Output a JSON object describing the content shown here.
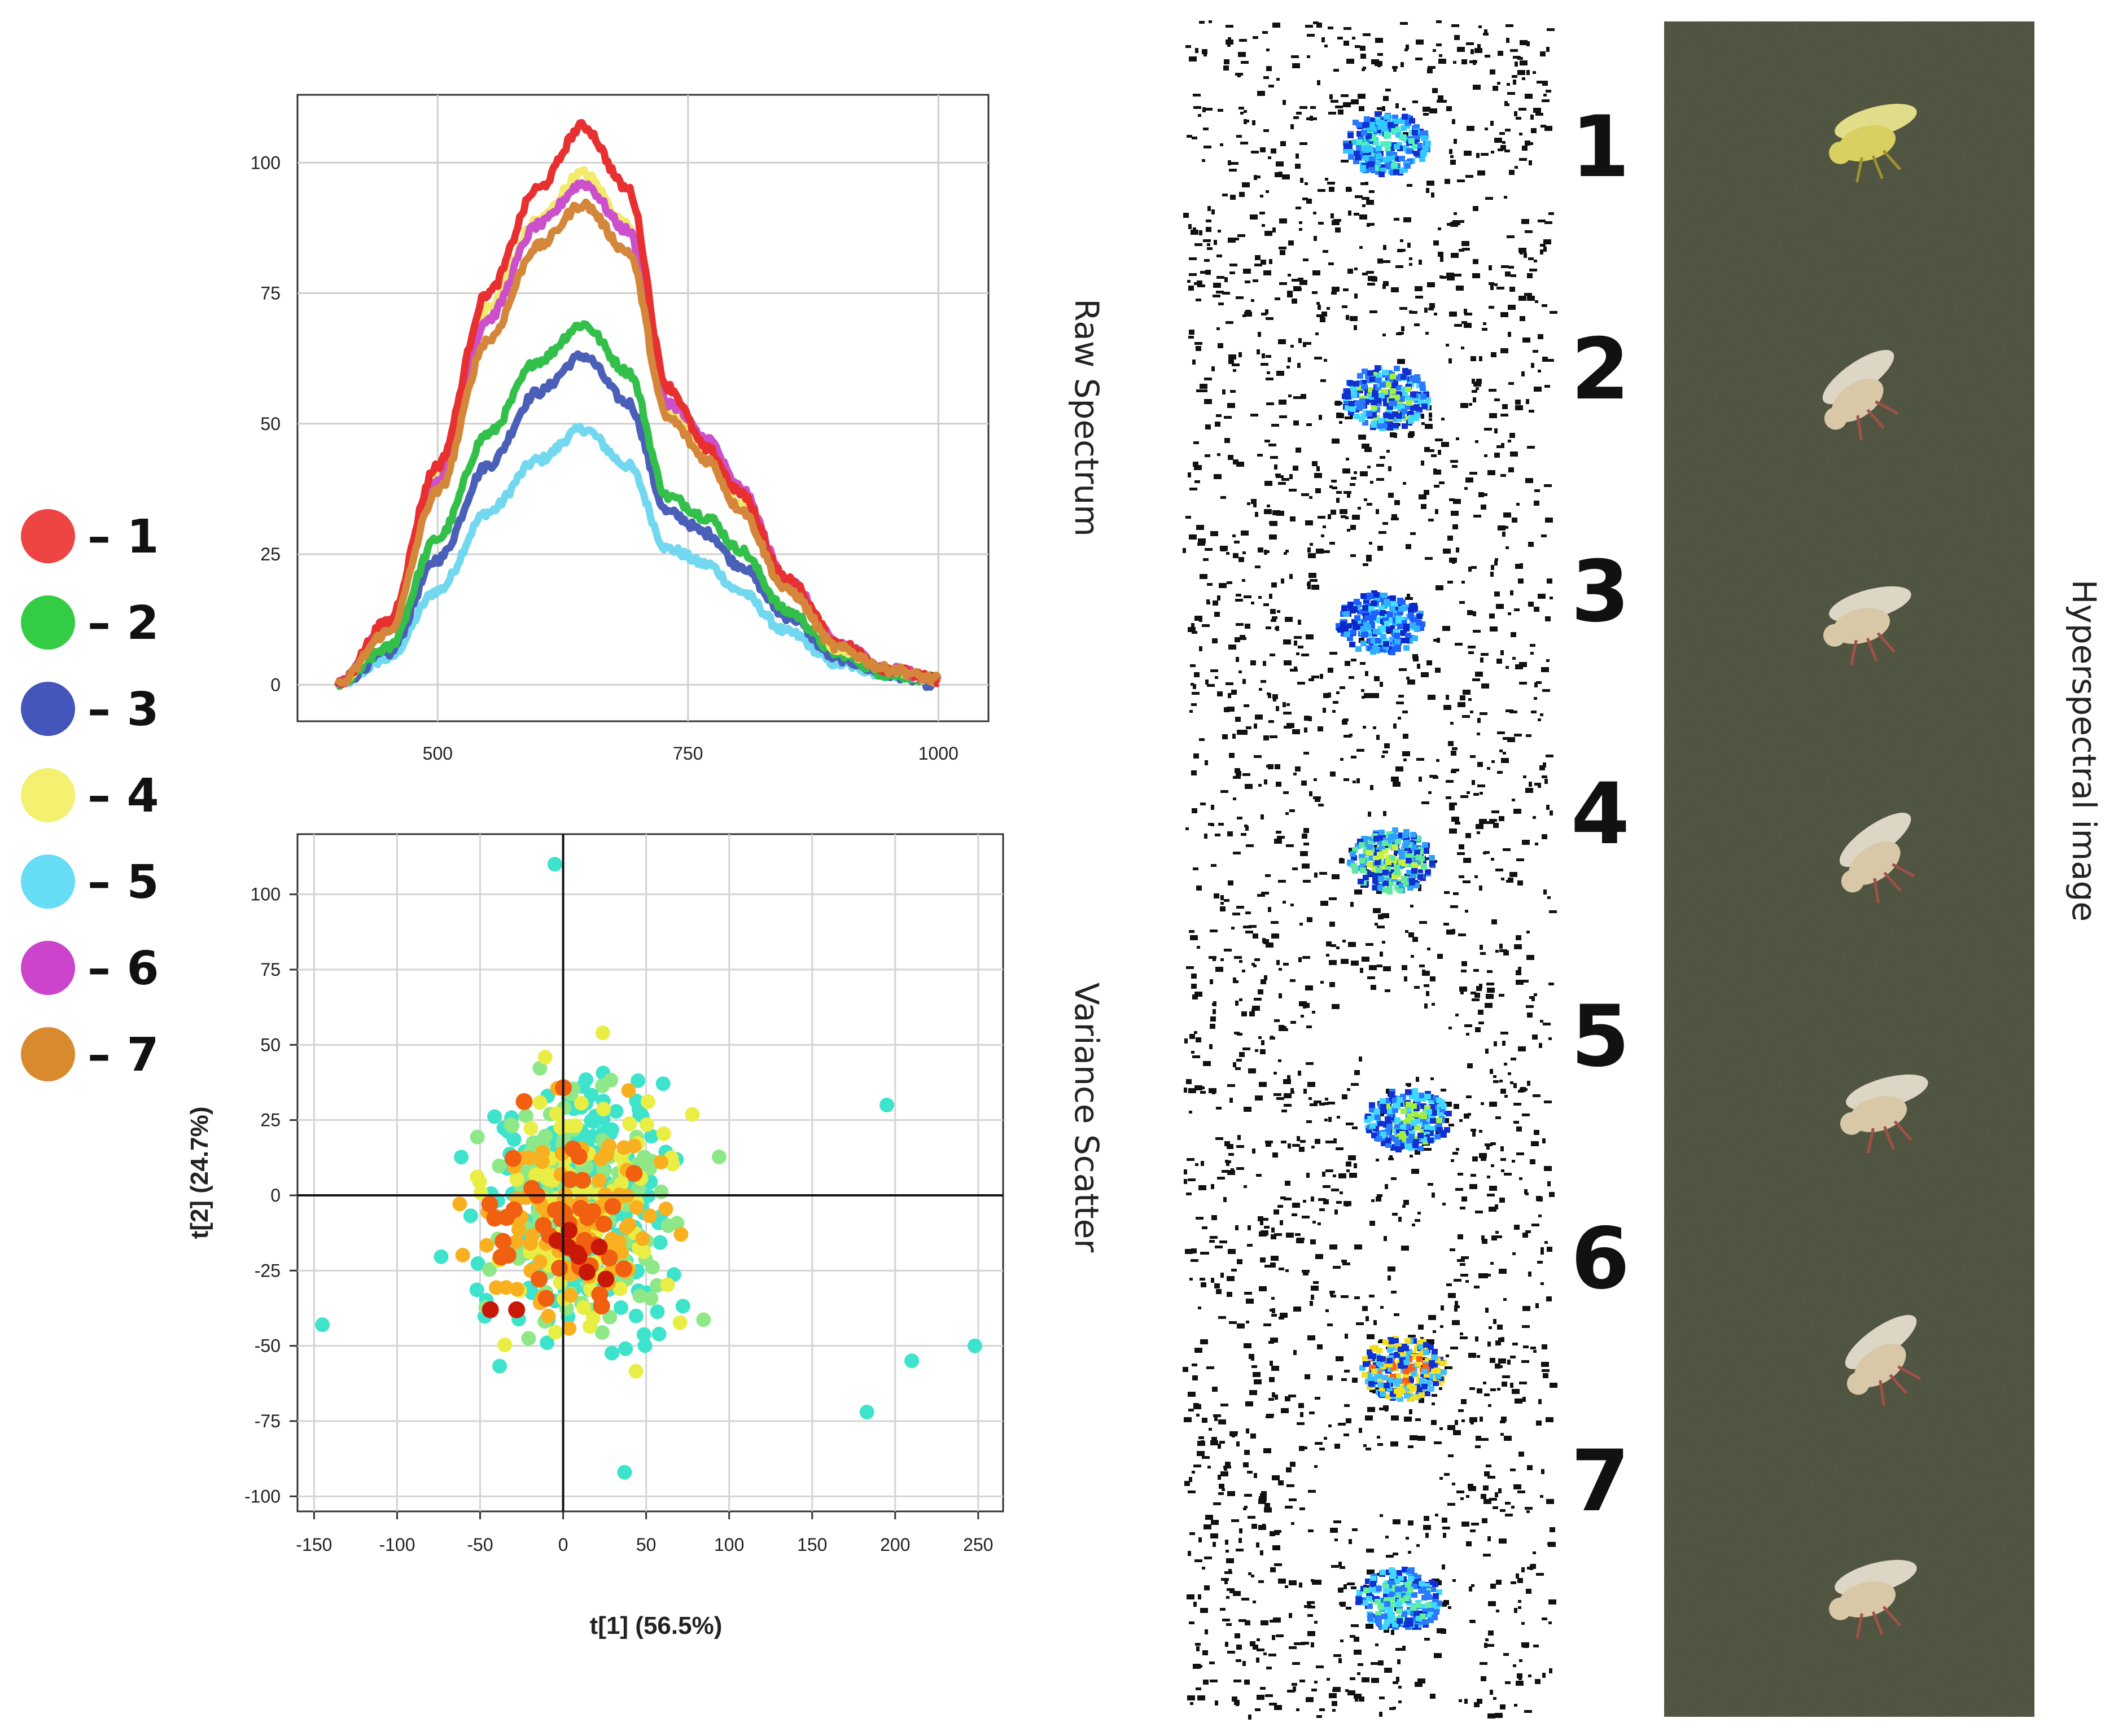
{
  "legend": [
    {
      "label": "– 1",
      "color": "#ee4444"
    },
    {
      "label": "– 2",
      "color": "#33cc44"
    },
    {
      "label": "– 3",
      "color": "#4455bb"
    },
    {
      "label": "– 4",
      "color": "#f4f070"
    },
    {
      "label": "– 5",
      "color": "#66ddf4"
    },
    {
      "label": "– 6",
      "color": "#cc44cc"
    },
    {
      "label": "– 7",
      "color": "#d98a2e"
    }
  ],
  "side_titles": {
    "raw": "Raw Spectrum",
    "variance": "Variance Scatter",
    "hyper": "Hyperspectral image"
  },
  "fly_numbers": [
    "1",
    "2",
    "3",
    "4",
    "5",
    "6",
    "7"
  ],
  "chart_data": [
    {
      "type": "line",
      "title": "Raw Spectrum",
      "xlabel": "",
      "ylabel": "",
      "xlim": [
        360,
        1050
      ],
      "ylim": [
        -7,
        113
      ],
      "xticks": [
        500,
        750,
        1000
      ],
      "yticks": [
        0,
        25,
        50,
        75,
        100
      ],
      "grid": true,
      "x": [
        400,
        450,
        500,
        550,
        600,
        645,
        690,
        730,
        770,
        800,
        850,
        900,
        950,
        1000
      ],
      "series": [
        {
          "name": "1",
          "color": "#e83030",
          "values": [
            0,
            12,
            42,
            75,
            95,
            107,
            95,
            57,
            45,
            37,
            20,
            8,
            3,
            1
          ]
        },
        {
          "name": "2",
          "color": "#33c04a",
          "values": [
            0,
            7,
            28,
            48,
            62,
            69,
            60,
            36,
            32,
            26,
            14,
            6,
            2,
            1
          ]
        },
        {
          "name": "3",
          "color": "#4a5fb8",
          "values": [
            0,
            6,
            24,
            42,
            56,
            63,
            54,
            33,
            29,
            23,
            13,
            5,
            2,
            0
          ]
        },
        {
          "name": "4",
          "color": "#f2ea6a",
          "values": [
            0,
            11,
            40,
            72,
            89,
            98,
            88,
            53,
            43,
            35,
            19,
            7,
            3,
            1
          ]
        },
        {
          "name": "5",
          "color": "#72d8f0",
          "values": [
            0,
            5,
            18,
            33,
            43,
            49,
            42,
            26,
            23,
            18,
            10,
            4,
            2,
            1
          ]
        },
        {
          "name": "6",
          "color": "#cc4fcc",
          "values": [
            0,
            11,
            39,
            70,
            88,
            96,
            87,
            54,
            47,
            38,
            20,
            8,
            3,
            1
          ]
        },
        {
          "name": "7",
          "color": "#d4873a",
          "values": [
            0,
            10,
            37,
            66,
            84,
            92,
            83,
            51,
            43,
            34,
            18,
            7,
            3,
            1
          ]
        }
      ]
    },
    {
      "type": "scatter",
      "title": "Variance Scatter",
      "xlabel": "t[1] (56.5%)",
      "ylabel": "t[2] (24.7%)",
      "xlim": [
        -160,
        265
      ],
      "ylim": [
        -105,
        120
      ],
      "xticks": [
        -150,
        -100,
        -50,
        0,
        50,
        100,
        150,
        200,
        250
      ],
      "yticks": [
        -100,
        -75,
        -50,
        -25,
        0,
        25,
        50,
        75,
        100
      ],
      "grid": true,
      "approx_point_count": 600,
      "color_scale": [
        "#3ee3cc",
        "#8fe888",
        "#e8ee44",
        "#f8b020",
        "#f06010",
        "#c81808"
      ],
      "extremes": {
        "x_min": -145,
        "x_max": 248,
        "y_min": -92,
        "y_max": 110
      }
    }
  ]
}
